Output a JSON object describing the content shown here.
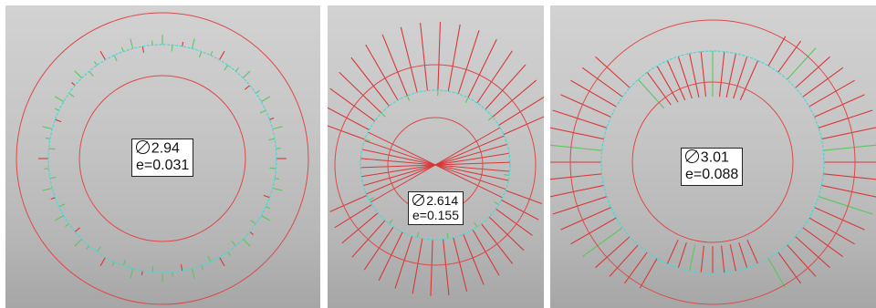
{
  "colors": {
    "circle": "#e04848",
    "fitted_circle": "#4ad7d2",
    "deviation_positive": "#d83838",
    "deviation_negative": "#5ac85a"
  },
  "panels": [
    {
      "diameter": "2.94",
      "eccentricity": "e=0.031"
    },
    {
      "diameter": "2.614",
      "eccentricity": "e=0.155"
    },
    {
      "diameter": "3.01",
      "eccentricity": "e=0.088"
    }
  ]
}
